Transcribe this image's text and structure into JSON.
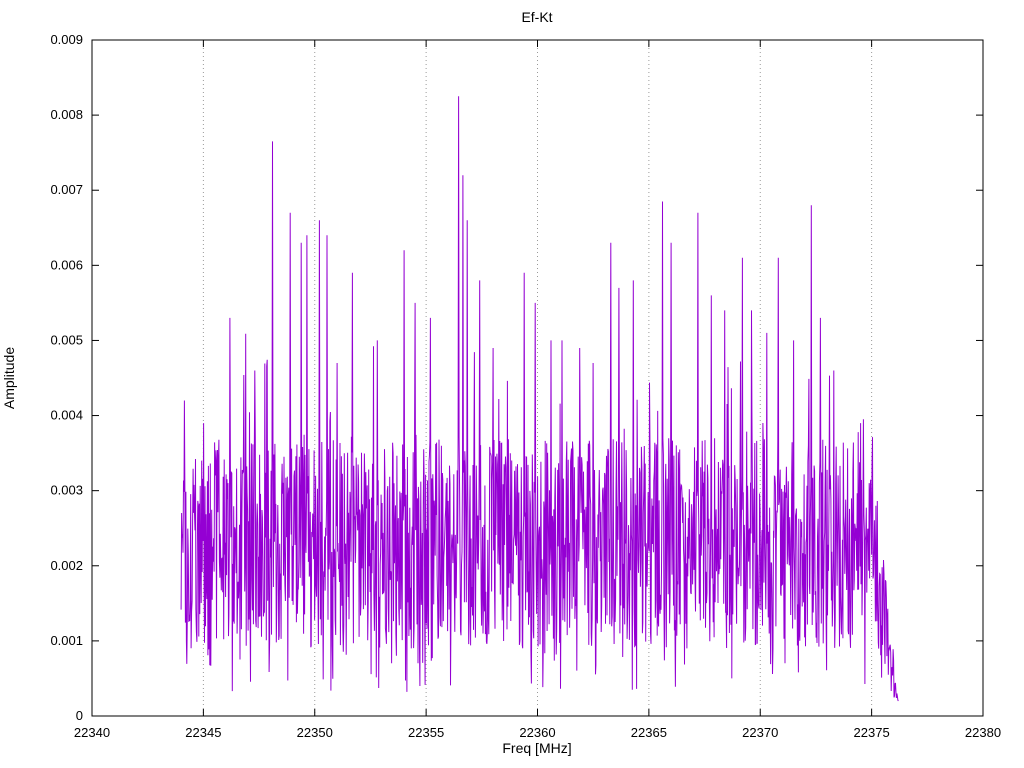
{
  "page": {
    "background": "#ffffff"
  },
  "chart_data": {
    "type": "line",
    "title": "Ef-Kt",
    "xlabel": "Freq [MHz]",
    "ylabel": "Amplitude",
    "xlim": [
      22340,
      22380
    ],
    "ylim": [
      0,
      0.009
    ],
    "xticks": [
      {
        "v": 22340,
        "label": "22340"
      },
      {
        "v": 22345,
        "label": "22345"
      },
      {
        "v": 22350,
        "label": "22350"
      },
      {
        "v": 22355,
        "label": "22355"
      },
      {
        "v": 22360,
        "label": "22360"
      },
      {
        "v": 22365,
        "label": "22365"
      },
      {
        "v": 22370,
        "label": "22370"
      },
      {
        "v": 22375,
        "label": "22375"
      },
      {
        "v": 22380,
        "label": "22380"
      }
    ],
    "yticks": [
      {
        "v": 0,
        "label": "0"
      },
      {
        "v": 0.001,
        "label": "0.001"
      },
      {
        "v": 0.002,
        "label": "0.002"
      },
      {
        "v": 0.003,
        "label": "0.003"
      },
      {
        "v": 0.004,
        "label": "0.004"
      },
      {
        "v": 0.005,
        "label": "0.005"
      },
      {
        "v": 0.006,
        "label": "0.006"
      },
      {
        "v": 0.007,
        "label": "0.007"
      },
      {
        "v": 0.008,
        "label": "0.008"
      },
      {
        "v": 0.009,
        "label": "0.009"
      }
    ],
    "grid": {
      "vertical": true,
      "horizontal": false,
      "color": "#9a9a9a",
      "style": "dotted"
    },
    "legend": "none",
    "border_color": "#000000",
    "series": [
      {
        "name": "Ef-Kt",
        "color": "#9400d3",
        "x_start": 22344.0,
        "x_end": 22376.2,
        "n_points": 1500,
        "noise": {
          "seed": 1337,
          "base_min": 0.0009,
          "base_span": 0.0028,
          "spike_prob": 0.1,
          "spike_span": 0.0016,
          "dip_prob": 0.07,
          "dip_factor": 0.35,
          "floor": 0.0002,
          "end_ramp_start": 22375.0,
          "end_ramp_rate": 0.8,
          "end_min_factor": 0.1,
          "neighbor_factor": 0.45
        },
        "peaks": [
          [
            22344.15,
            0.0042
          ],
          [
            22345.0,
            0.0039
          ],
          [
            22346.2,
            0.0053
          ],
          [
            22347.3,
            0.0046
          ],
          [
            22348.1,
            0.00765
          ],
          [
            22348.9,
            0.0067
          ],
          [
            22349.4,
            0.0063
          ],
          [
            22349.65,
            0.0064
          ],
          [
            22350.2,
            0.0066
          ],
          [
            22350.55,
            0.0064
          ],
          [
            22351.0,
            0.0047
          ],
          [
            22351.7,
            0.0059
          ],
          [
            22352.8,
            0.005
          ],
          [
            22354.0,
            0.0062
          ],
          [
            22354.5,
            0.0055
          ],
          [
            22355.2,
            0.0053
          ],
          [
            22356.45,
            0.00825
          ],
          [
            22356.65,
            0.0072
          ],
          [
            22356.85,
            0.0066
          ],
          [
            22357.4,
            0.0058
          ],
          [
            22358.0,
            0.0049
          ],
          [
            22359.4,
            0.0059
          ],
          [
            22359.9,
            0.0055
          ],
          [
            22360.6,
            0.005
          ],
          [
            22361.1,
            0.005
          ],
          [
            22361.9,
            0.0049
          ],
          [
            22362.5,
            0.0047
          ],
          [
            22363.3,
            0.0063
          ],
          [
            22363.65,
            0.0057
          ],
          [
            22364.3,
            0.0058
          ],
          [
            22365.6,
            0.00685
          ],
          [
            22366.0,
            0.0063
          ],
          [
            22367.2,
            0.0067
          ],
          [
            22367.8,
            0.0056
          ],
          [
            22368.4,
            0.0054
          ],
          [
            22369.2,
            0.0061
          ],
          [
            22369.6,
            0.0054
          ],
          [
            22370.3,
            0.0051
          ],
          [
            22370.8,
            0.0061
          ],
          [
            22371.5,
            0.005
          ],
          [
            22372.3,
            0.0068
          ],
          [
            22372.7,
            0.0053
          ],
          [
            22373.3,
            0.0046
          ],
          [
            22374.5,
            0.0039
          ],
          [
            22375.2,
            0.0028
          ]
        ]
      }
    ]
  }
}
